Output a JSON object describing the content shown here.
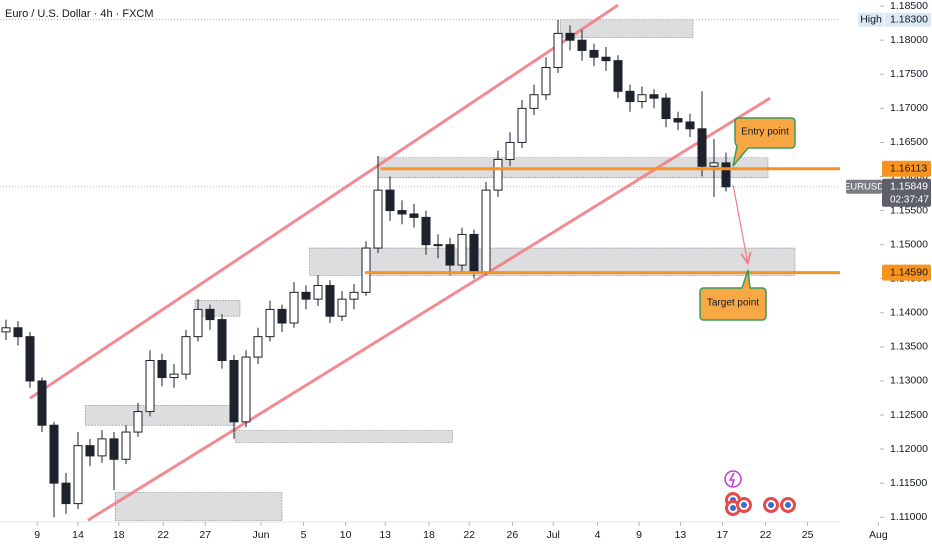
{
  "chart_data": {
    "type": "candlestick",
    "title": "Euro / U.S. Dollar · 4h · FXCM",
    "symbol": "EURUSD",
    "countdown": "02:37:47",
    "xlim": [
      0,
      73.5
    ],
    "ylim": [
      1.1093,
      1.1859
    ],
    "open": [
      1.1372,
      1.1378,
      1.1365,
      1.13,
      1.1235,
      1.115,
      1.112,
      1.1205,
      1.119,
      1.1215,
      1.1185,
      1.1225,
      1.1255,
      1.133,
      1.1305,
      1.131,
      1.1365,
      1.1405,
      1.139,
      1.133,
      1.124,
      1.1335,
      1.1365,
      1.1405,
      1.1385,
      1.143,
      1.142,
      1.144,
      1.1395,
      1.142,
      1.143,
      1.1495,
      1.158,
      1.155,
      1.1545,
      1.154,
      1.15,
      1.15,
      1.147,
      1.1515,
      1.146,
      1.158,
      1.1625,
      1.165,
      1.17,
      1.172,
      1.176,
      1.181,
      1.18,
      1.1785,
      1.1775,
      1.177,
      1.1725,
      1.171,
      1.172,
      1.1715,
      1.1685,
      1.168,
      1.167,
      1.1615,
      1.162
    ],
    "high": [
      1.139,
      1.1388,
      1.1372,
      1.1305,
      1.124,
      1.1165,
      1.1225,
      1.1215,
      1.1228,
      1.1225,
      1.1235,
      1.1268,
      1.1345,
      1.134,
      1.1325,
      1.1375,
      1.142,
      1.1412,
      1.1398,
      1.1338,
      1.1345,
      1.1378,
      1.1418,
      1.1412,
      1.1445,
      1.144,
      1.1455,
      1.1448,
      1.1432,
      1.1442,
      1.1505,
      1.163,
      1.16,
      1.1565,
      1.156,
      1.155,
      1.1515,
      1.151,
      1.1525,
      1.1522,
      1.1592,
      1.1638,
      1.1665,
      1.1712,
      1.1735,
      1.1775,
      1.183,
      1.1822,
      1.1815,
      1.1795,
      1.179,
      1.1778,
      1.1735,
      1.1732,
      1.1728,
      1.1722,
      1.1695,
      1.1692,
      1.1725,
      1.1655,
      1.1635
    ],
    "low": [
      1.136,
      1.1352,
      1.129,
      1.1225,
      1.11,
      1.1105,
      1.1112,
      1.1175,
      1.118,
      1.114,
      1.1178,
      1.1218,
      1.1248,
      1.1292,
      1.129,
      1.1302,
      1.1358,
      1.1375,
      1.1318,
      1.1215,
      1.1232,
      1.1325,
      1.1358,
      1.1372,
      1.1378,
      1.1405,
      1.141,
      1.1385,
      1.1388,
      1.1405,
      1.1425,
      1.1488,
      1.1535,
      1.153,
      1.1525,
      1.1485,
      1.148,
      1.1455,
      1.146,
      1.145,
      1.1455,
      1.157,
      1.1615,
      1.1642,
      1.169,
      1.1712,
      1.1752,
      1.1785,
      1.177,
      1.1762,
      1.1755,
      1.1715,
      1.1695,
      1.17,
      1.17,
      1.1672,
      1.1668,
      1.1658,
      1.16,
      1.157,
      1.1578
    ],
    "close": [
      1.1378,
      1.1365,
      1.13,
      1.1235,
      1.115,
      1.112,
      1.1205,
      1.119,
      1.1215,
      1.1185,
      1.1225,
      1.1255,
      1.133,
      1.1305,
      1.131,
      1.1365,
      1.1405,
      1.139,
      1.133,
      1.124,
      1.1335,
      1.1365,
      1.1405,
      1.1385,
      1.143,
      1.142,
      1.144,
      1.1395,
      1.142,
      1.143,
      1.1495,
      1.158,
      1.155,
      1.1545,
      1.154,
      1.15,
      1.15,
      1.147,
      1.1515,
      1.146,
      1.158,
      1.1625,
      1.165,
      1.17,
      1.172,
      1.176,
      1.181,
      1.18,
      1.1785,
      1.1775,
      1.177,
      1.1725,
      1.171,
      1.172,
      1.1715,
      1.1685,
      1.168,
      1.167,
      1.1615,
      1.162,
      1.15849
    ],
    "up_color": "#ffffff",
    "down_color": "#1e222d",
    "xticks": [
      {
        "value": 3.1,
        "label": "9"
      },
      {
        "value": 6.5,
        "label": "14"
      },
      {
        "value": 9.9,
        "label": "18"
      },
      {
        "value": 13.6,
        "label": "22"
      },
      {
        "value": 17.1,
        "label": "27"
      },
      {
        "value": 21.75,
        "label": "Jun"
      },
      {
        "value": 25.3,
        "label": "5"
      },
      {
        "value": 28.8,
        "label": "10"
      },
      {
        "value": 32.1,
        "label": "13"
      },
      {
        "value": 35.75,
        "label": "18"
      },
      {
        "value": 39.1,
        "label": "22"
      },
      {
        "value": 42.7,
        "label": "26"
      },
      {
        "value": 46.1,
        "label": "Jul"
      },
      {
        "value": 49.8,
        "label": "4"
      },
      {
        "value": 53.25,
        "label": "9"
      },
      {
        "value": 56.7,
        "label": "13"
      },
      {
        "value": 60.2,
        "label": "17"
      },
      {
        "value": 63.8,
        "label": "22"
      },
      {
        "value": 67.3,
        "label": "25"
      },
      {
        "value": 73.2,
        "label": "Aug"
      }
    ],
    "yticks": [
      {
        "value": 1.185,
        "label": "1.18500"
      },
      {
        "value": 1.18,
        "label": "1.18000"
      },
      {
        "value": 1.175,
        "label": "1.17500"
      },
      {
        "value": 1.17,
        "label": "1.17000"
      },
      {
        "value": 1.165,
        "label": "1.16500"
      },
      {
        "value": 1.16,
        "label": "1.16000"
      },
      {
        "value": 1.155,
        "label": "1.15500"
      },
      {
        "value": 1.15,
        "label": "1.15000"
      },
      {
        "value": 1.145,
        "label": "1.14500"
      },
      {
        "value": 1.14,
        "label": "1.14000"
      },
      {
        "value": 1.135,
        "label": "1.13500"
      },
      {
        "value": 1.13,
        "label": "1.13000"
      },
      {
        "value": 1.125,
        "label": "1.12500"
      },
      {
        "value": 1.12,
        "label": "1.12000"
      },
      {
        "value": 1.115,
        "label": "1.11500"
      },
      {
        "value": 1.11,
        "label": "1.11000"
      }
    ],
    "high_marker": {
      "name": "High",
      "value": 1.183,
      "label": "1.18300"
    },
    "last_price": {
      "value": 1.15849,
      "label": "1.15849"
    },
    "price_lines": [
      {
        "value": 1.16113,
        "label": "1.16113",
        "x_start": 31.7,
        "color": "#f7931e"
      },
      {
        "value": 1.1459,
        "label": "1.14590",
        "x_start": 30.4,
        "color": "#f7931e"
      }
    ],
    "zones": [
      {
        "x": [
          46.7,
          57.75
        ],
        "y": [
          1.1804,
          1.183
        ]
      },
      {
        "x": [
          31.5,
          64
        ],
        "y": [
          1.1598,
          1.16275
        ]
      },
      {
        "x": [
          25.8,
          66.25
        ],
        "y": [
          1.1455,
          1.1495
        ]
      },
      {
        "x": [
          16.25,
          20
        ],
        "y": [
          1.1395,
          1.1418
        ]
      },
      {
        "x": [
          7.1,
          19.6
        ],
        "y": [
          1.1235,
          1.1264
        ]
      },
      {
        "x": [
          19.6,
          37.7
        ],
        "y": [
          1.121,
          1.1227
        ]
      },
      {
        "x": [
          9.6,
          23.5
        ],
        "y": [
          1.1095,
          1.1136
        ]
      }
    ],
    "channel_color": "#ef7f87",
    "channels": [
      {
        "x": [
          2.5,
          51.5
        ],
        "y": [
          1.12746,
          1.18515
        ]
      },
      {
        "x": [
          7.33,
          64.17
        ],
        "y": [
          1.10956,
          1.1715
        ]
      }
    ],
    "arrow": {
      "x": [
        61.1,
        62.3
      ],
      "y": [
        1.15873,
        1.14742
      ]
    },
    "annotations": [
      "Entry point",
      "Target point"
    ]
  }
}
